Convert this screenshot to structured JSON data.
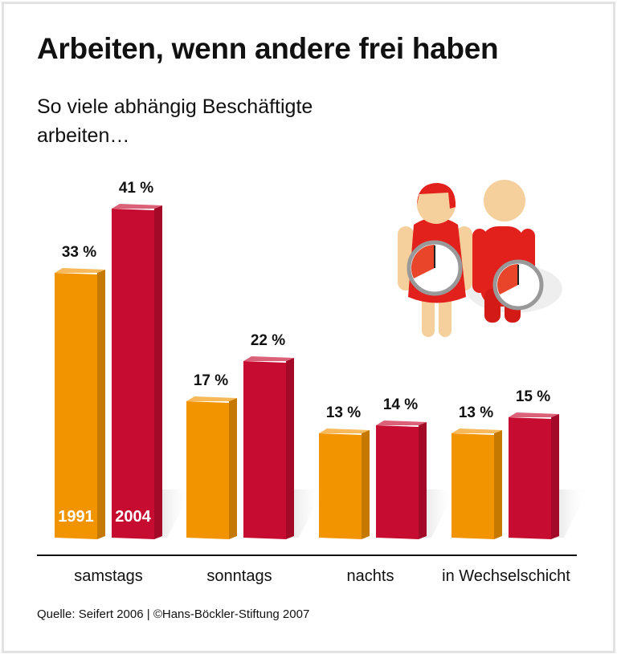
{
  "title": "Arbeiten, wenn andere frei haben",
  "subtitle": "So viele abhängig Beschäftigte arbeiten…",
  "source": "Quelle: Seifert 2006 | ©Hans-Böckler-Stiftung 2007",
  "illustration": "two-figures-holding-clocks",
  "chart_data": {
    "type": "bar",
    "categories": [
      "samstags",
      "sonntags",
      "nachts",
      "in Wechselschicht"
    ],
    "series": [
      {
        "name": "1991",
        "values": [
          33,
          17,
          13,
          13
        ],
        "labels": [
          "33 %",
          "17 %",
          "13 %",
          "13 %"
        ],
        "color": "#f29400"
      },
      {
        "name": "2004",
        "values": [
          41,
          22,
          14,
          15
        ],
        "labels": [
          "41 %",
          "22 %",
          "14 %",
          "15 %"
        ],
        "color": "#c60c30"
      }
    ],
    "ylim": [
      0,
      45
    ],
    "unit": "%",
    "grid": false,
    "legend": "inside first bars"
  }
}
